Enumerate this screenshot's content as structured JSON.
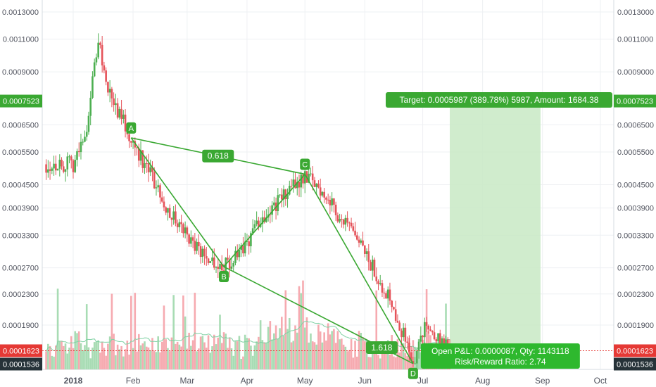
{
  "chart_data": {
    "type": "candlestick",
    "title": "",
    "price_axis": {
      "scale": "log",
      "ticks": [
        "0.0013000",
        "0.0011000",
        "0.0009000",
        "0.0006500",
        "0.0005500",
        "0.0004500",
        "0.0003900",
        "0.0003300",
        "0.0002700",
        "0.0002300",
        "0.0001900"
      ],
      "tick_values": [
        0.0013,
        0.0011,
        0.0009,
        0.00065,
        0.00055,
        0.00045,
        0.00039,
        0.00033,
        0.00027,
        0.00023,
        0.00019
      ]
    },
    "time_axis": {
      "ticks": [
        "2018",
        "Feb",
        "Mar",
        "Apr",
        "May",
        "Jun",
        "Jul",
        "Aug",
        "Sep",
        "Oct"
      ],
      "tick_dates": [
        "2018-01-01",
        "2018-02-01",
        "2018-03-01",
        "2018-04-01",
        "2018-05-01",
        "2018-06-01",
        "2018-07-01",
        "2018-08-01",
        "2018-09-01",
        "2018-10-01"
      ]
    },
    "price_labels": {
      "target": "0.0007523",
      "last": "0.0001623",
      "ma": "0.0001536"
    },
    "pattern": {
      "type": "harmonic-xabcd",
      "points": [
        {
          "label": "A",
          "date": "2018-01-31",
          "price": 0.0006
        },
        {
          "label": "B",
          "date": "2018-03-20",
          "price": 0.000272
        },
        {
          "label": "C",
          "date": "2018-05-01",
          "price": 0.00048
        },
        {
          "label": "D",
          "date": "2018-06-26",
          "price": 0.00015
        }
      ],
      "ratios": [
        {
          "label": "0.618",
          "between": [
            "A",
            "C"
          ]
        },
        {
          "label": "1.618",
          "between": [
            "B",
            "D"
          ]
        }
      ]
    },
    "position": {
      "target_label": "Target: 0.0005987 (389.78%) 5987, Amount: 1684.38",
      "pnl_label": "Open P&L: 0.0000087, Qty: 1143118",
      "rr_label": "Risk/Reward Ratio: 2.74"
    },
    "colors": {
      "up": "#4caf50",
      "down": "#e5535a",
      "volume_up": "#a8dcb4",
      "volume_down": "#f6aab0",
      "pattern": "#3aa832",
      "target_zone": "#c8e9c4",
      "last_price": "#e53935",
      "ma_label": "#263238"
    }
  }
}
